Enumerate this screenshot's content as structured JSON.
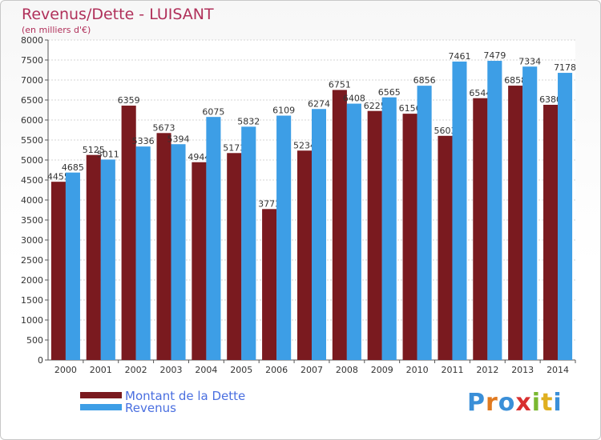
{
  "header": {
    "title": "Revenus/Dette - LUISANT",
    "subtitle": "(en milliers d'€)"
  },
  "legend": {
    "items": [
      {
        "label": "Montant de la Dette",
        "color": "#7a1a1f"
      },
      {
        "label": "Revenus",
        "color": "#3d9ee6"
      }
    ]
  },
  "logo": {
    "letters": [
      "P",
      "r",
      "o",
      "x",
      "i",
      "t",
      "i"
    ],
    "colors": [
      "#3a8fd8",
      "#e07a20",
      "#3a8fd8",
      "#d83030",
      "#7ab830",
      "#e0b020",
      "#3a8fd8"
    ]
  },
  "chart_data": {
    "type": "bar",
    "categories": [
      "2000",
      "2001",
      "2002",
      "2003",
      "2004",
      "2005",
      "2006",
      "2007",
      "2008",
      "2009",
      "2010",
      "2011",
      "2012",
      "2013",
      "2014"
    ],
    "series": [
      {
        "name": "Montant de la Dette",
        "color": "#7a1a1f",
        "values": [
          4455,
          5125,
          6359,
          5673,
          4944,
          5173,
          3773,
          5234,
          6751,
          6225,
          6156,
          5603,
          6544,
          6858,
          6380
        ],
        "labels": [
          "4455",
          "5125",
          "6359",
          "5673",
          "4944",
          "5173",
          "3773",
          "5234",
          "6751",
          "6225",
          "6156",
          "5603",
          "6544",
          "6858",
          "6380"
        ]
      },
      {
        "name": "Revenus",
        "color": "#3d9ee6",
        "values": [
          4685,
          5011,
          5336,
          5394,
          6075,
          5832,
          6109,
          6274,
          6408,
          6565,
          6856,
          7461,
          7479,
          7334,
          7178
        ],
        "labels": [
          "4685",
          "5011",
          "5336",
          "5394",
          "6075",
          "5832",
          "6109",
          "6274",
          "6408",
          "6565",
          "6856",
          "7461",
          "7479",
          "7334",
          "7178"
        ]
      }
    ],
    "y_ticks": [
      "0",
      "500",
      "1000",
      "1500",
      "2000",
      "2500",
      "3000",
      "3500",
      "4000",
      "4500",
      "5000",
      "5500",
      "6000",
      "6500",
      "7000",
      "7500",
      "8000"
    ],
    "ylim": [
      0,
      8000
    ],
    "grid": true
  }
}
